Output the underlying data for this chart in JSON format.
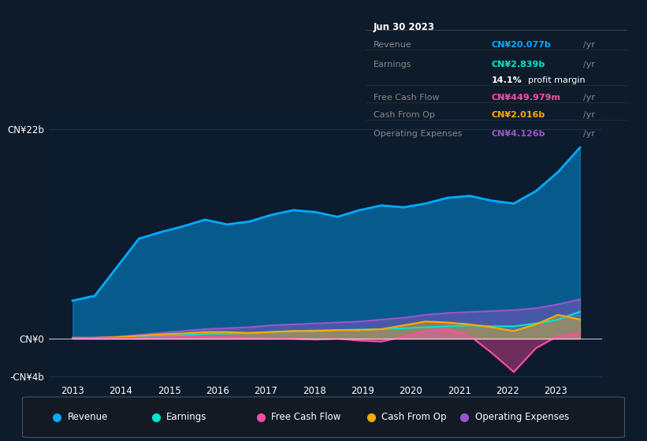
{
  "background_color": "#0d1b2a",
  "plot_bg_color": "#0d1b2e",
  "colors": {
    "revenue": "#00aaff",
    "earnings": "#00e5cc",
    "free_cash_flow": "#ff4da6",
    "cash_from_op": "#ffaa00",
    "operating_expenses": "#9955cc"
  },
  "info_box": {
    "date": "Jun 30 2023",
    "revenue_val": "CN¥20.077b",
    "revenue_color": "#00aaff",
    "earnings_val": "CN¥2.839b",
    "earnings_color": "#00e5cc",
    "profit_margin": "14.1%",
    "free_cash_flow_val": "CN¥449.979m",
    "free_cash_flow_color": "#ff4da6",
    "cash_from_op_val": "CN¥2.016b",
    "cash_from_op_color": "#ffaa00",
    "op_exp_val": "CN¥4.126b",
    "op_exp_color": "#9955cc"
  },
  "revenue": [
    4.0,
    4.5,
    7.5,
    10.5,
    11.2,
    11.8,
    12.5,
    12.0,
    12.3,
    13.0,
    13.5,
    13.3,
    12.8,
    13.5,
    14.0,
    13.8,
    14.2,
    14.8,
    15.0,
    14.5,
    14.2,
    15.5,
    17.5,
    20.077
  ],
  "earnings": [
    0.05,
    0.05,
    0.1,
    0.15,
    0.25,
    0.35,
    0.5,
    0.55,
    0.6,
    0.7,
    0.8,
    0.85,
    0.9,
    0.95,
    1.0,
    1.1,
    1.2,
    1.3,
    1.4,
    1.3,
    1.3,
    1.6,
    2.0,
    2.839
  ],
  "free_cash_flow": [
    0.05,
    0.05,
    0.05,
    0.1,
    0.15,
    0.2,
    0.2,
    0.15,
    0.1,
    0.05,
    0.0,
    -0.1,
    0.0,
    -0.2,
    -0.3,
    0.2,
    0.8,
    1.0,
    0.3,
    -1.5,
    -3.5,
    -1.0,
    0.3,
    0.45
  ],
  "cash_from_op": [
    0.1,
    0.1,
    0.15,
    0.3,
    0.45,
    0.55,
    0.7,
    0.7,
    0.6,
    0.7,
    0.8,
    0.8,
    0.9,
    0.9,
    1.0,
    1.4,
    1.8,
    1.7,
    1.5,
    1.2,
    0.8,
    1.5,
    2.5,
    2.016
  ],
  "operating_expenses": [
    0.05,
    0.1,
    0.2,
    0.4,
    0.6,
    0.8,
    1.0,
    1.1,
    1.2,
    1.4,
    1.5,
    1.6,
    1.7,
    1.8,
    2.0,
    2.2,
    2.5,
    2.7,
    2.8,
    2.9,
    3.0,
    3.2,
    3.6,
    4.126
  ],
  "n_points": 24,
  "x_start": 2013.0,
  "x_end": 2023.5,
  "xlim": [
    2012.5,
    2023.95
  ],
  "ylim": [
    -4.5,
    24.0
  ],
  "xticks": [
    2013,
    2014,
    2015,
    2016,
    2017,
    2018,
    2019,
    2020,
    2021,
    2022,
    2023
  ],
  "ytick_positions": [
    -4,
    0,
    22
  ],
  "ytick_labels": [
    "-CN¥4b",
    "CN¥0",
    "CN¥22b"
  ]
}
